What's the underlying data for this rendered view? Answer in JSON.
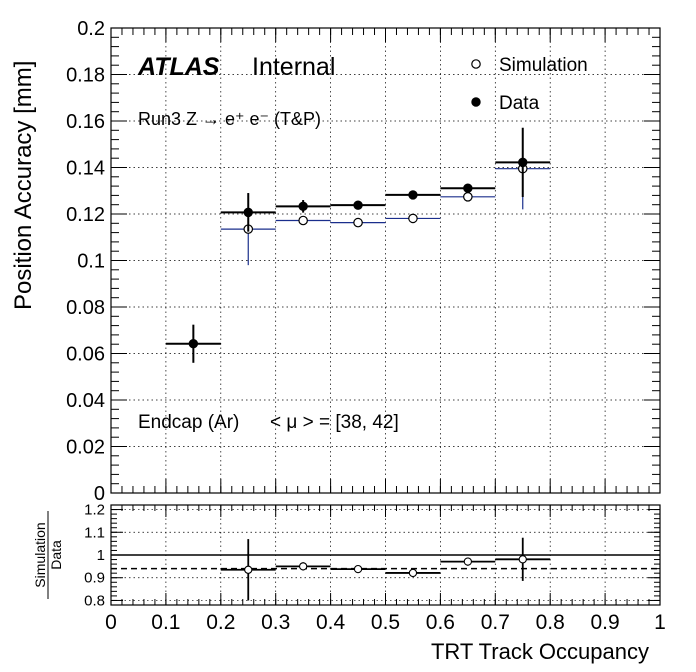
{
  "chart_data": {
    "type": "scatter",
    "xlabel": "TRT Track Occupancy",
    "main": {
      "ylabel": "Position Accuracy [mm]",
      "xlim": [
        0,
        1
      ],
      "ylim": [
        0,
        0.2
      ],
      "grid": true,
      "x_ticks": [
        "0",
        "0.1",
        "0.2",
        "0.3",
        "0.4",
        "0.5",
        "0.6",
        "0.7",
        "0.8",
        "0.9",
        "1"
      ],
      "y_ticks": [
        "0",
        "0.02",
        "0.04",
        "0.06",
        "0.08",
        "0.1",
        "0.12",
        "0.14",
        "0.16",
        "0.18",
        "0.2"
      ],
      "series": [
        {
          "name": "Simulation",
          "marker": "open-circle",
          "color": "#1a2e8c",
          "points": [
            {
              "x": 0.25,
              "y": 0.1135,
              "yerr": 0.0155
            },
            {
              "x": 0.35,
              "y": 0.1172,
              "yerr": 0.0015
            },
            {
              "x": 0.45,
              "y": 0.1163,
              "yerr": 0.0008
            },
            {
              "x": 0.55,
              "y": 0.1181,
              "yerr": 0.0008
            },
            {
              "x": 0.65,
              "y": 0.1274,
              "yerr": 0.0015
            },
            {
              "x": 0.75,
              "y": 0.1395,
              "yerr": 0.0175
            }
          ]
        },
        {
          "name": "Data",
          "marker": "filled-circle",
          "color": "#000000",
          "points": [
            {
              "x": 0.15,
              "y": 0.0642,
              "yerr": 0.0082
            },
            {
              "x": 0.25,
              "y": 0.1207,
              "yerr": 0.0083
            },
            {
              "x": 0.35,
              "y": 0.1233,
              "yerr": 0.0027
            },
            {
              "x": 0.45,
              "y": 0.1238,
              "yerr": 0.0013
            },
            {
              "x": 0.55,
              "y": 0.1282,
              "yerr": 0.0011
            },
            {
              "x": 0.65,
              "y": 0.1311,
              "yerr": 0.0018
            },
            {
              "x": 0.75,
              "y": 0.1422,
              "yerr": 0.0149
            }
          ]
        }
      ]
    },
    "ratio": {
      "ylabel_numerator": "Simulation",
      "ylabel_denominator": "Data",
      "xlim": [
        0,
        1
      ],
      "ylim": [
        0.78,
        1.22
      ],
      "grid": true,
      "x_ticks": [
        "0",
        "0.1",
        "0.2",
        "0.3",
        "0.4",
        "0.5",
        "0.6",
        "0.7",
        "0.8",
        "0.9",
        "1"
      ],
      "y_ticks": [
        "0.8",
        "0.9",
        "1",
        "1.1",
        "1.2"
      ],
      "reference_line": 1.0,
      "mean_line": 0.94,
      "points": [
        {
          "x": 0.25,
          "y": 0.935,
          "yerr": 0.135
        },
        {
          "x": 0.35,
          "y": 0.95,
          "yerr": 0.018
        },
        {
          "x": 0.45,
          "y": 0.938,
          "yerr": 0.008
        },
        {
          "x": 0.55,
          "y": 0.921,
          "yerr": 0.008
        },
        {
          "x": 0.65,
          "y": 0.971,
          "yerr": 0.018
        },
        {
          "x": 0.75,
          "y": 0.981,
          "yerr": 0.095
        }
      ]
    }
  },
  "labels": {
    "atlas": "ATLAS",
    "internal": "Internal",
    "process": "Run3 Z → e⁺ e⁻ (T&P)",
    "region": "Endcap (Ar)",
    "pileup": "< μ > = [38, 42]"
  },
  "legend": {
    "position": "top-right",
    "entries": [
      "Simulation",
      "Data"
    ]
  }
}
